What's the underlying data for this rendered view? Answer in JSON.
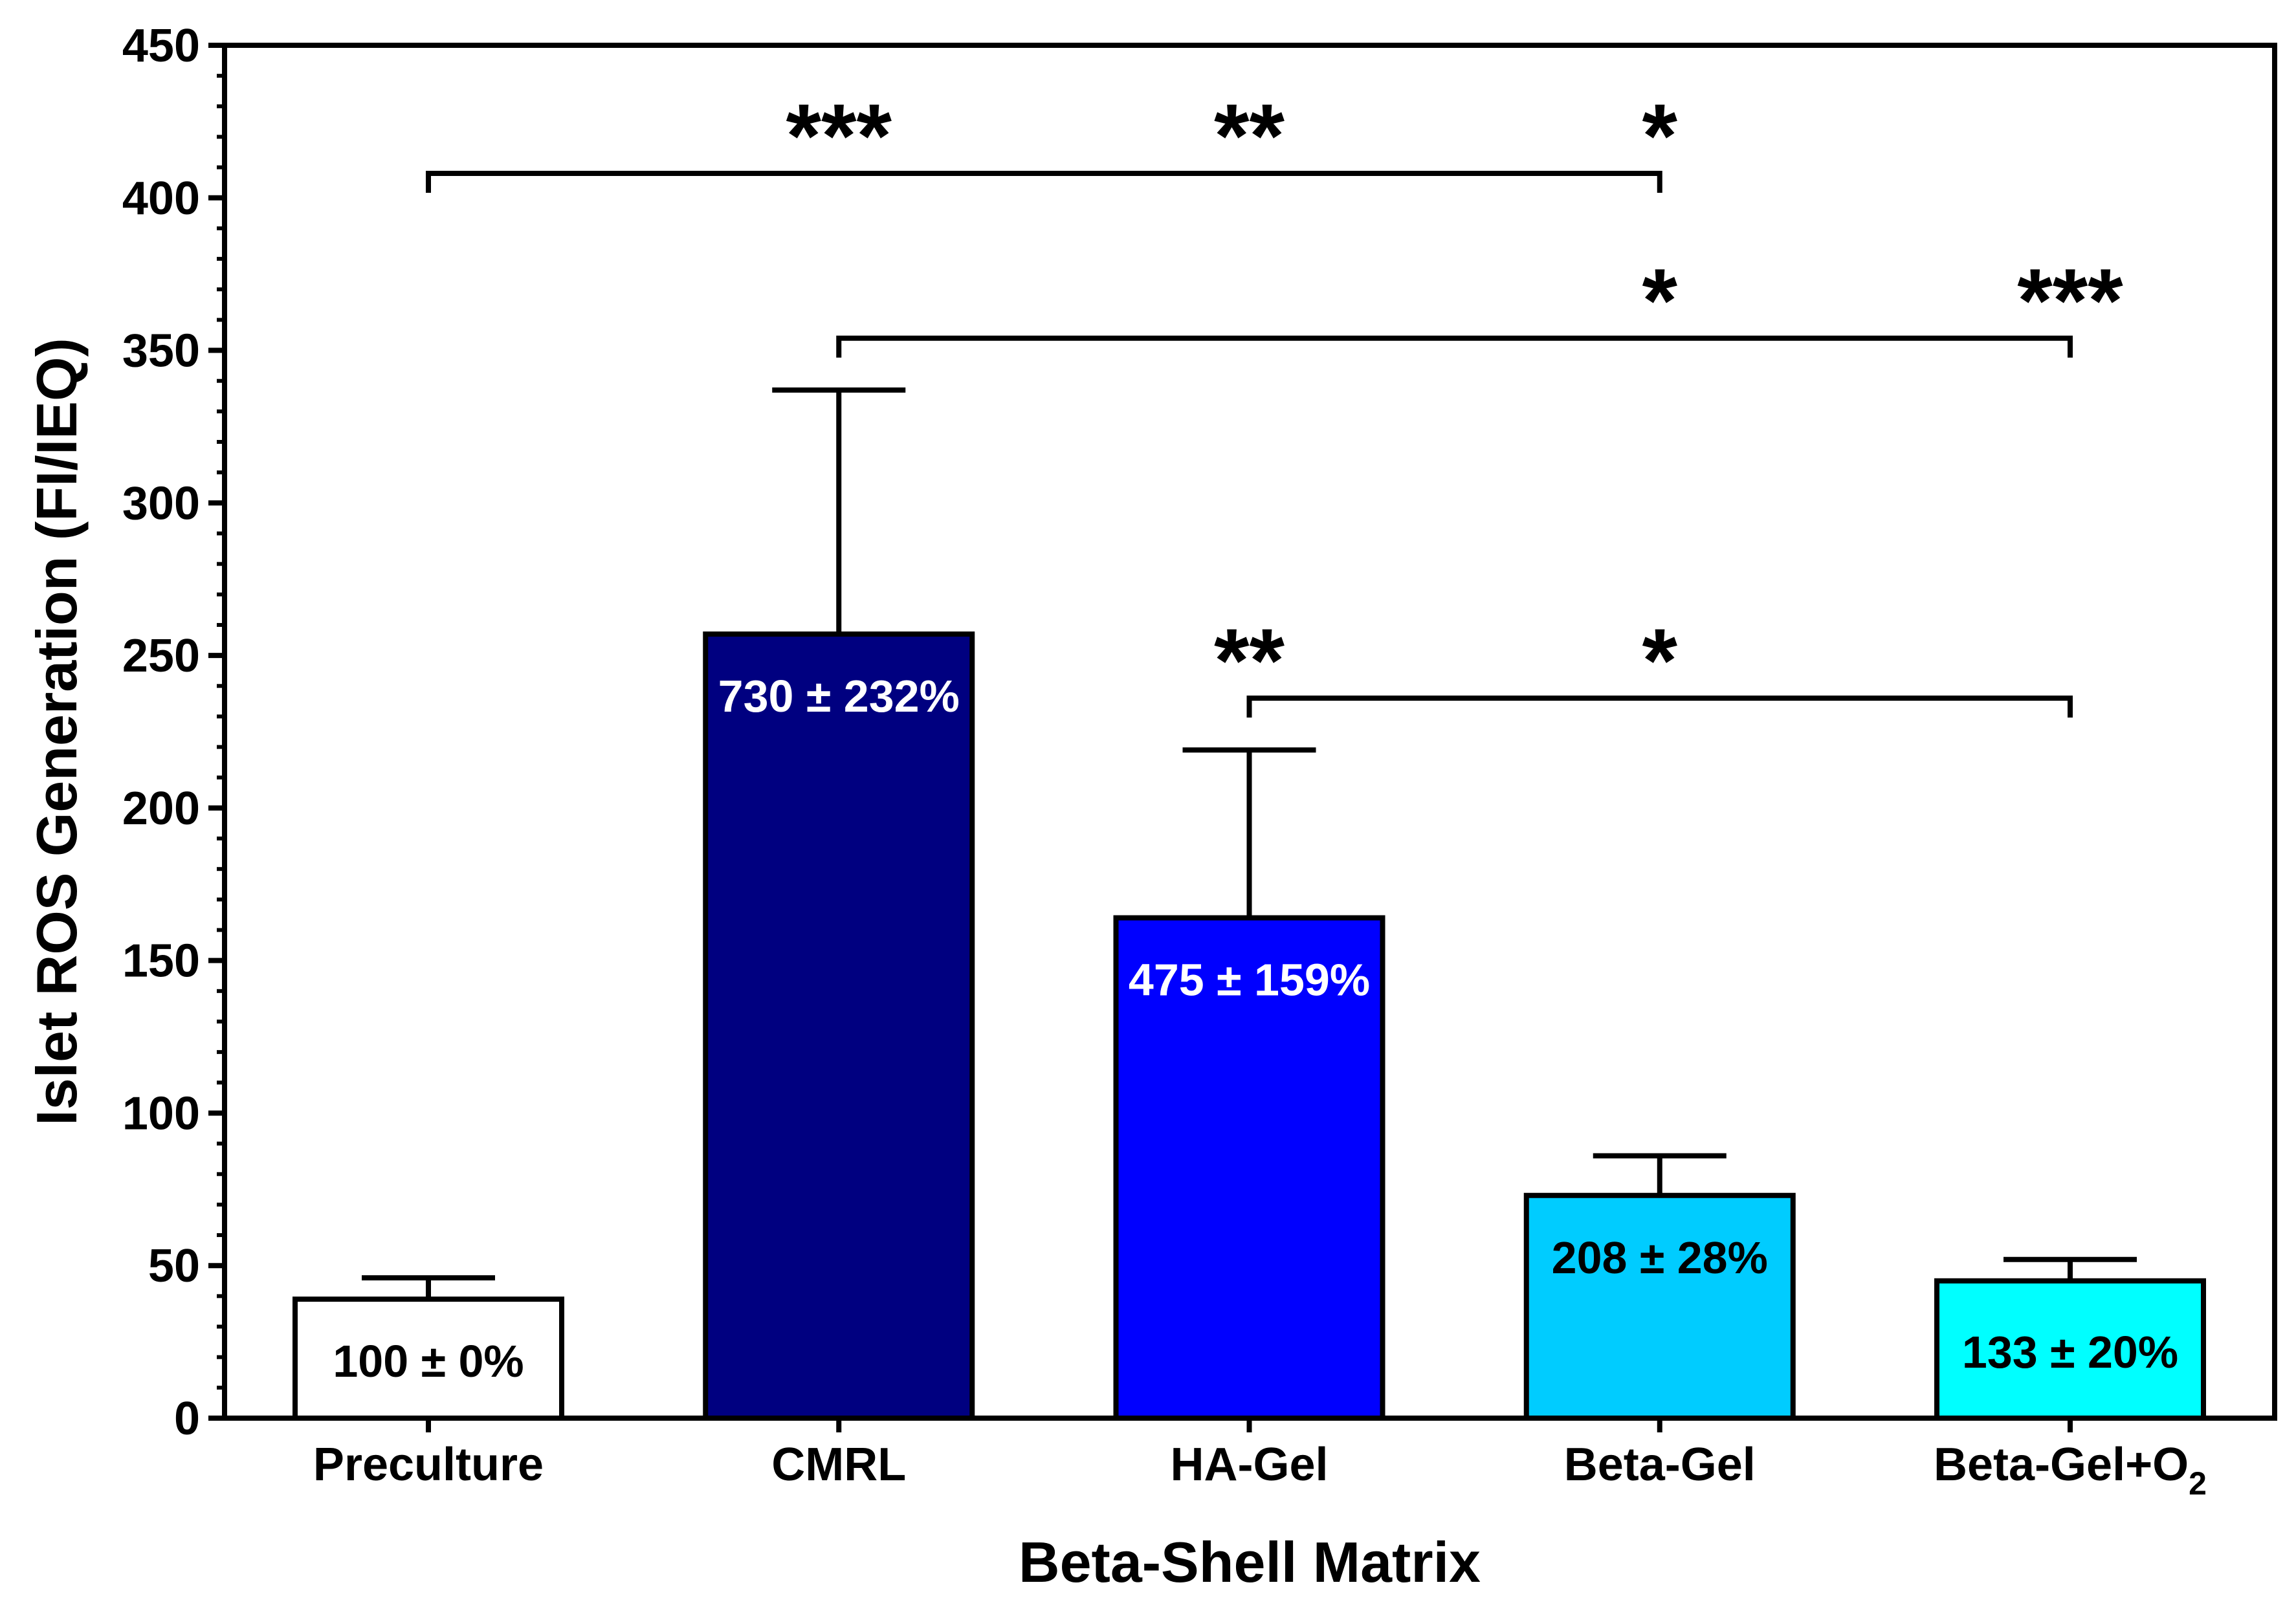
{
  "chart_data": {
    "type": "bar",
    "title": "",
    "xlabel": "Beta-Shell Matrix",
    "ylabel": "Islet ROS Generation (FI/IEQ)",
    "ylim": [
      0,
      450
    ],
    "yticks": [
      0,
      50,
      100,
      150,
      200,
      250,
      300,
      350,
      400,
      450
    ],
    "yminor_step": 10,
    "grid": false,
    "categories": [
      {
        "label": "Preculture",
        "subscript": ""
      },
      {
        "label": "CMRL",
        "subscript": ""
      },
      {
        "label": "HA-Gel",
        "subscript": ""
      },
      {
        "label": "Beta-Gel",
        "subscript": ""
      },
      {
        "label": "Beta-Gel+O",
        "subscript": "2"
      }
    ],
    "values": [
      39,
      257,
      164,
      73,
      45
    ],
    "errors": [
      7,
      80,
      55,
      13,
      7
    ],
    "bar_labels": [
      "100 ± 0%",
      "730 ± 232%",
      "475 ± 159%",
      "208 ± 28%",
      "133 ± 20%"
    ],
    "bar_colors": [
      "#ffffff",
      "#000080",
      "#0000ff",
      "#00ccff",
      "#00ffff"
    ],
    "bar_label_colors": [
      "#000000",
      "#ffffff",
      "#ffffff",
      "#000000",
      "#000000"
    ],
    "significance": [
      {
        "from": 0,
        "to": 3,
        "y": 408,
        "marks": [
          {
            "at": 1,
            "text": "***"
          },
          {
            "at": 2,
            "text": "**"
          },
          {
            "at": 3,
            "text": "*"
          }
        ]
      },
      {
        "from": 1,
        "to": 4,
        "y": 354,
        "marks": [
          {
            "at": 3,
            "text": "*"
          },
          {
            "at": 4,
            "text": "***"
          }
        ]
      },
      {
        "from": 2,
        "to": 4,
        "y": 236,
        "marks": [
          {
            "at": 2,
            "text": "**"
          },
          {
            "at": 3,
            "text": "*"
          }
        ]
      }
    ]
  }
}
